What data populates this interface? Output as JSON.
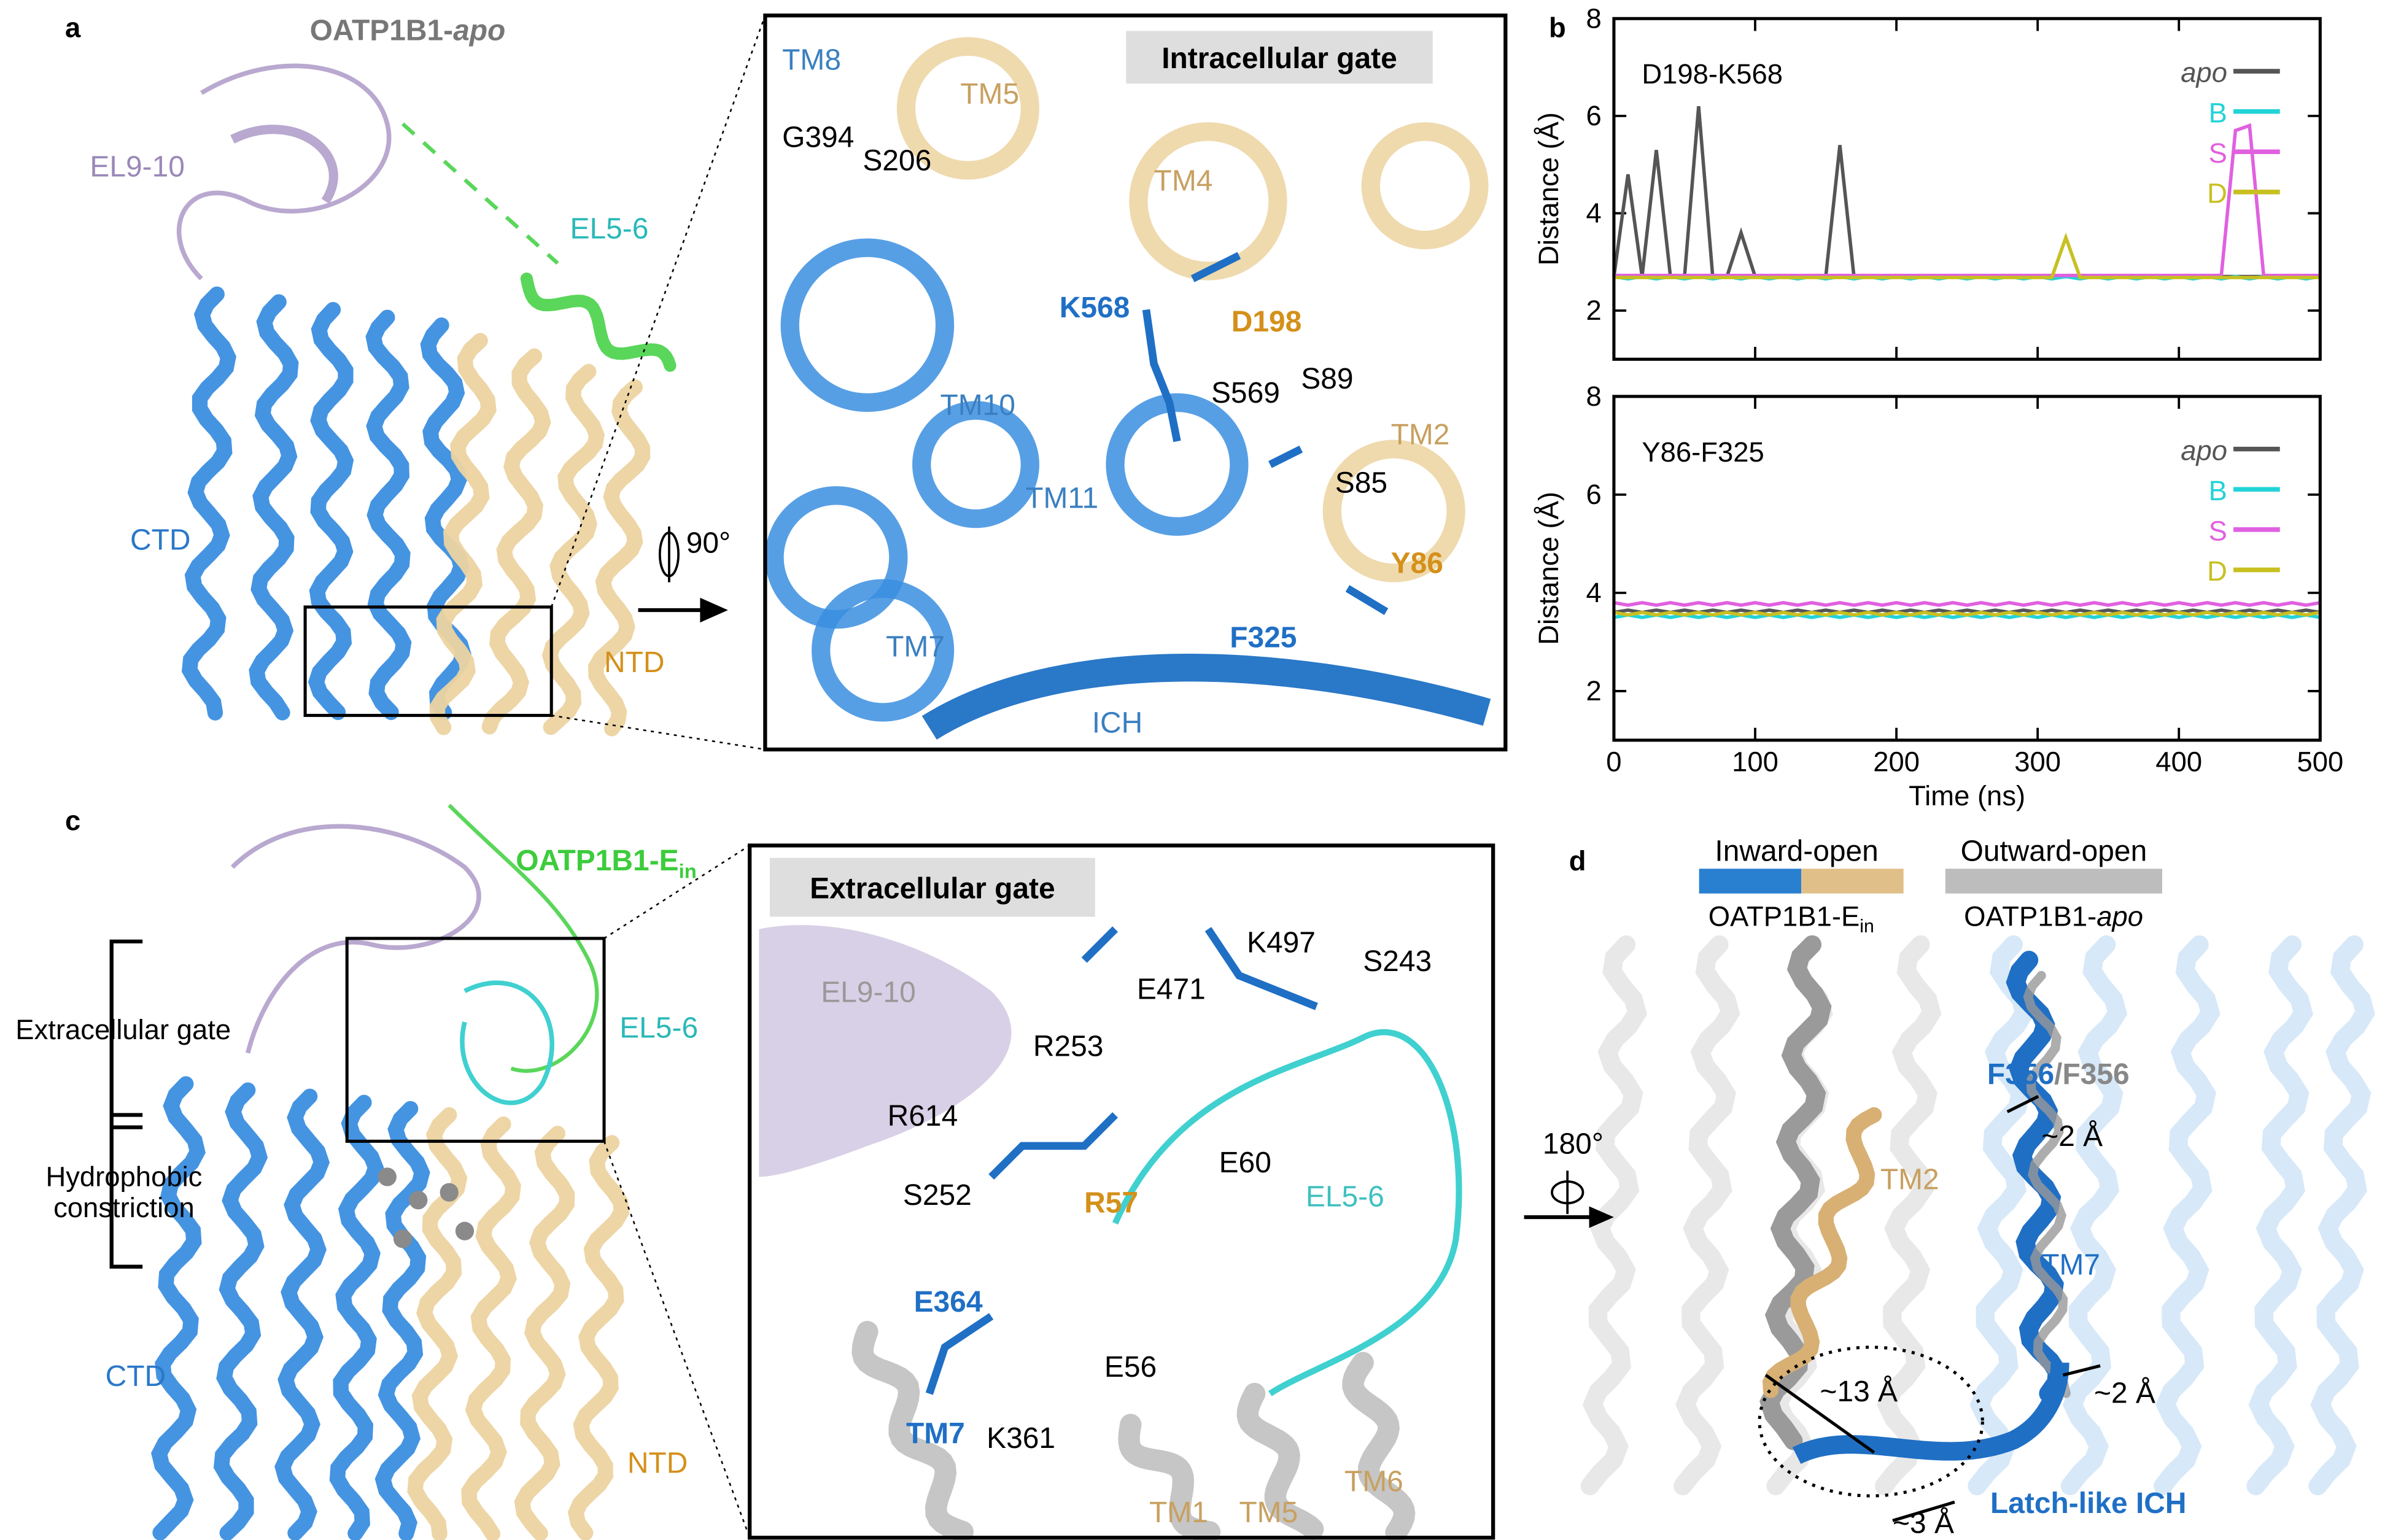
{
  "panel_labels": [
    "a",
    "b",
    "c",
    "d"
  ],
  "panel_a": {
    "name_prefix": "OATP1B1-",
    "name_italic": "apo",
    "el9_10": "EL9-10",
    "el5_6": "EL5-6",
    "ctd": "CTD",
    "ntd": "NTD",
    "rotation": "90°"
  },
  "panel_a_zoom": {
    "title": "Intracellular gate",
    "labels": [
      "TM8",
      "G394",
      "S206",
      "TM5",
      "TM4",
      "K568",
      "D198",
      "TM10",
      "S569",
      "S89",
      "TM2",
      "S85",
      "TM11",
      "Y86",
      "TM7",
      "F325",
      "ICH"
    ]
  },
  "panel_c": {
    "name_prefix": "OATP1B1-E",
    "name_sub": "in",
    "el5_6": "EL5-6",
    "ctd": "CTD",
    "ntd": "NTD",
    "gate": "Extracellular gate",
    "constriction": [
      "Hydrophobic",
      "constriction"
    ]
  },
  "panel_c_zoom": {
    "title": "Extracellular gate",
    "labels": [
      "K497",
      "E471",
      "S243",
      "EL9-10",
      "R253",
      "R614",
      "E60",
      "S252",
      "EL5-6",
      "R57",
      "E364",
      "E56",
      "TM7",
      "K361",
      "TM1",
      "TM5",
      "TM6"
    ]
  },
  "panel_d": {
    "inward": "Inward-open",
    "outward": "Outward-open",
    "ein_prefix": "OATP1B1-E",
    "ein_sub": "in",
    "apo_prefix": "OATP1B1-",
    "apo_italic": "apo",
    "rotation": "180°",
    "f356_a": "F356",
    "f356_b": "/F356",
    "labels": [
      "~2 Å",
      "TM2",
      "TM7",
      "~13 Å",
      "~2 Å",
      "~3 Å"
    ],
    "ich": "Latch-like ICH"
  },
  "chart_data": [
    {
      "type": "line",
      "title": "D198-K568",
      "y_label": "Distance (Å)",
      "show_xtick_labels": false,
      "xlim": [
        0,
        500
      ],
      "xticks": [
        0,
        100,
        200,
        300,
        400,
        500
      ],
      "ylim": [
        1,
        8
      ],
      "yticks": [
        2,
        4,
        6,
        8
      ],
      "x": [
        0,
        10,
        20,
        30,
        40,
        50,
        60,
        70,
        80,
        90,
        100,
        110,
        120,
        130,
        140,
        150,
        160,
        170,
        180,
        190,
        200,
        210,
        220,
        230,
        240,
        250,
        260,
        270,
        280,
        290,
        300,
        310,
        320,
        330,
        340,
        350,
        360,
        370,
        380,
        390,
        400,
        410,
        420,
        430,
        440,
        450,
        460,
        470,
        480,
        490,
        500
      ],
      "series": [
        {
          "name": "apo",
          "italic": true,
          "color": "#555555",
          "values": [
            2.7,
            4.8,
            2.7,
            5.3,
            2.7,
            2.7,
            6.2,
            2.7,
            2.7,
            3.6,
            2.7,
            2.7,
            2.7,
            2.7,
            2.7,
            2.7,
            5.4,
            2.7,
            2.7,
            2.7,
            2.7,
            2.7,
            2.7,
            2.7,
            2.7,
            2.7,
            2.7,
            2.7,
            2.7,
            2.7,
            2.7,
            2.7,
            2.7,
            2.7,
            2.7,
            2.7,
            2.7,
            2.7,
            2.7,
            2.7,
            2.7,
            2.7,
            2.7,
            2.7,
            2.7,
            2.7,
            2.7,
            2.7,
            2.7,
            2.7,
            2.7
          ]
        },
        {
          "name": "B",
          "color": "#22d3d8",
          "values": [
            2.7,
            2.65,
            2.7,
            2.65,
            2.7,
            2.65,
            2.7,
            2.65,
            2.7,
            2.65,
            2.7,
            2.65,
            2.7,
            2.65,
            2.7,
            2.65,
            2.7,
            2.65,
            2.7,
            2.65,
            2.7,
            2.65,
            2.7,
            2.65,
            2.7,
            2.65,
            2.7,
            2.65,
            2.7,
            2.65,
            2.7,
            2.65,
            2.7,
            2.65,
            2.7,
            2.65,
            2.7,
            2.65,
            2.7,
            2.65,
            2.7,
            2.65,
            2.7,
            2.65,
            2.7,
            2.65,
            2.7,
            2.65,
            2.7,
            2.65,
            2.7
          ]
        },
        {
          "name": "S",
          "color": "#e060e0",
          "values": [
            2.72,
            2.72,
            2.72,
            2.72,
            2.72,
            2.72,
            2.72,
            2.72,
            2.72,
            2.72,
            2.72,
            2.72,
            2.72,
            2.72,
            2.72,
            2.72,
            2.72,
            2.72,
            2.72,
            2.72,
            2.72,
            2.72,
            2.72,
            2.72,
            2.72,
            2.72,
            2.72,
            2.72,
            2.72,
            2.72,
            2.72,
            2.72,
            2.72,
            2.72,
            2.72,
            2.72,
            2.72,
            2.72,
            2.72,
            2.72,
            2.72,
            2.72,
            2.72,
            2.72,
            5.7,
            5.8,
            2.72,
            2.72,
            2.72,
            2.72,
            2.72
          ]
        },
        {
          "name": "D",
          "color": "#c8c020",
          "values": [
            2.68,
            2.68,
            2.68,
            2.68,
            2.68,
            2.68,
            2.68,
            2.68,
            2.68,
            2.68,
            2.68,
            2.68,
            2.68,
            2.68,
            2.68,
            2.68,
            2.68,
            2.68,
            2.68,
            2.68,
            2.68,
            2.68,
            2.68,
            2.68,
            2.68,
            2.68,
            2.68,
            2.68,
            2.68,
            2.68,
            2.68,
            2.68,
            3.5,
            2.68,
            2.68,
            2.68,
            2.68,
            2.68,
            2.68,
            2.68,
            2.68,
            2.68,
            2.68,
            2.68,
            2.68,
            2.68,
            2.68,
            2.68,
            2.68,
            2.68,
            2.68
          ]
        }
      ]
    },
    {
      "type": "line",
      "title": "Y86-F325",
      "y_label": "Distance (Å)",
      "x_label": "Time (ns)",
      "show_xtick_labels": true,
      "xlim": [
        0,
        500
      ],
      "xticks": [
        0,
        100,
        200,
        300,
        400,
        500
      ],
      "ylim": [
        1,
        8
      ],
      "yticks": [
        2,
        4,
        6,
        8
      ],
      "x": [
        0,
        10,
        20,
        30,
        40,
        50,
        60,
        70,
        80,
        90,
        100,
        110,
        120,
        130,
        140,
        150,
        160,
        170,
        180,
        190,
        200,
        210,
        220,
        230,
        240,
        250,
        260,
        270,
        280,
        290,
        300,
        310,
        320,
        330,
        340,
        350,
        360,
        370,
        380,
        390,
        400,
        410,
        420,
        430,
        440,
        450,
        460,
        470,
        480,
        490,
        500
      ],
      "series": [
        {
          "name": "apo",
          "italic": true,
          "color": "#555555",
          "values": [
            3.6,
            3.65,
            3.6,
            3.65,
            3.6,
            3.65,
            3.6,
            3.65,
            3.6,
            3.65,
            3.6,
            3.65,
            3.6,
            3.65,
            3.6,
            3.65,
            3.6,
            3.65,
            3.6,
            3.65,
            3.6,
            3.65,
            3.6,
            3.65,
            3.6,
            3.65,
            3.6,
            3.65,
            3.6,
            3.65,
            3.6,
            3.65,
            3.6,
            3.65,
            3.6,
            3.65,
            3.6,
            3.65,
            3.6,
            3.65,
            3.6,
            3.65,
            3.6,
            3.65,
            3.6,
            3.65,
            3.6,
            3.65,
            3.6,
            3.65,
            3.6
          ]
        },
        {
          "name": "B",
          "color": "#22d3d8",
          "values": [
            3.5,
            3.55,
            3.5,
            3.55,
            3.5,
            3.55,
            3.5,
            3.55,
            3.5,
            3.55,
            3.5,
            3.55,
            3.5,
            3.55,
            3.5,
            3.55,
            3.5,
            3.55,
            3.5,
            3.55,
            3.5,
            3.55,
            3.5,
            3.55,
            3.5,
            3.55,
            3.5,
            3.55,
            3.5,
            3.55,
            3.5,
            3.55,
            3.5,
            3.55,
            3.5,
            3.55,
            3.5,
            3.55,
            3.5,
            3.55,
            3.5,
            3.55,
            3.5,
            3.55,
            3.5,
            3.55,
            3.5,
            3.55,
            3.5,
            3.55,
            3.5
          ]
        },
        {
          "name": "S",
          "color": "#e060e0",
          "values": [
            3.8,
            3.75,
            3.8,
            3.75,
            3.8,
            3.75,
            3.8,
            3.75,
            3.8,
            3.75,
            3.8,
            3.75,
            3.8,
            3.75,
            3.8,
            3.75,
            3.8,
            3.75,
            3.8,
            3.75,
            3.8,
            3.75,
            3.8,
            3.75,
            3.8,
            3.75,
            3.8,
            3.75,
            3.8,
            3.75,
            3.8,
            3.75,
            3.8,
            3.75,
            3.8,
            3.75,
            3.8,
            3.75,
            3.8,
            3.75,
            3.8,
            3.75,
            3.8,
            3.75,
            3.8,
            3.75,
            3.8,
            3.75,
            3.8,
            3.75,
            3.8
          ]
        },
        {
          "name": "D",
          "color": "#c8c020",
          "values": [
            3.6,
            3.55,
            3.6,
            3.55,
            3.6,
            3.55,
            3.6,
            3.55,
            3.6,
            3.55,
            3.6,
            3.55,
            3.6,
            3.55,
            3.6,
            3.55,
            3.6,
            3.55,
            3.6,
            3.55,
            3.6,
            3.55,
            3.6,
            3.55,
            3.6,
            3.55,
            3.6,
            3.55,
            3.6,
            3.55,
            3.6,
            3.55,
            3.6,
            3.55,
            3.6,
            3.55,
            3.6,
            3.55,
            3.6,
            3.55,
            3.6,
            3.55,
            3.6,
            3.55,
            3.6,
            3.55,
            3.6,
            3.55,
            3.6,
            3.55,
            3.6
          ]
        }
      ]
    }
  ]
}
